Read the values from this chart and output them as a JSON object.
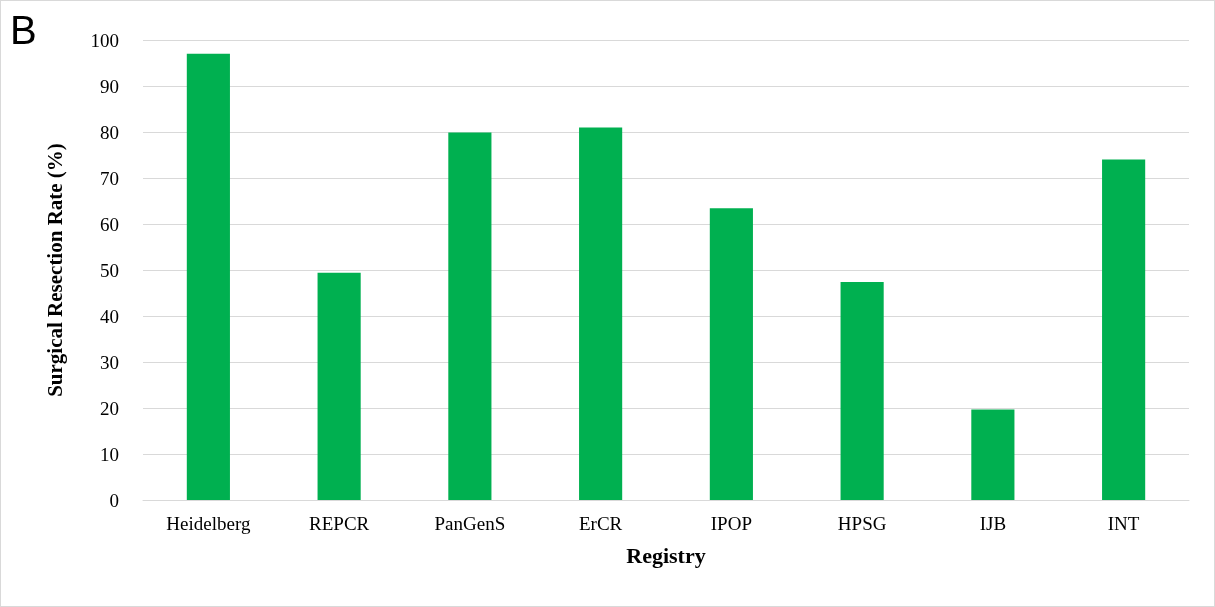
{
  "chart_data": {
    "type": "bar",
    "xlabel": "Registry",
    "ylabel": "Surgical Resection Rate (%)",
    "annotations": [
      "B"
    ],
    "categories": [
      "Heidelberg",
      "REPCR",
      "PanGenS",
      "ErCR",
      "IPOP",
      "HPSG",
      "IJB",
      "INT"
    ],
    "values": [
      97,
      49.4,
      79.9,
      81,
      63.4,
      47.4,
      19.7,
      74
    ],
    "color": "#00b050",
    "ylim": [
      0,
      100
    ],
    "yticks": [
      0,
      10,
      20,
      30,
      40,
      50,
      60,
      70,
      80,
      90,
      100
    ],
    "grid": "y"
  }
}
